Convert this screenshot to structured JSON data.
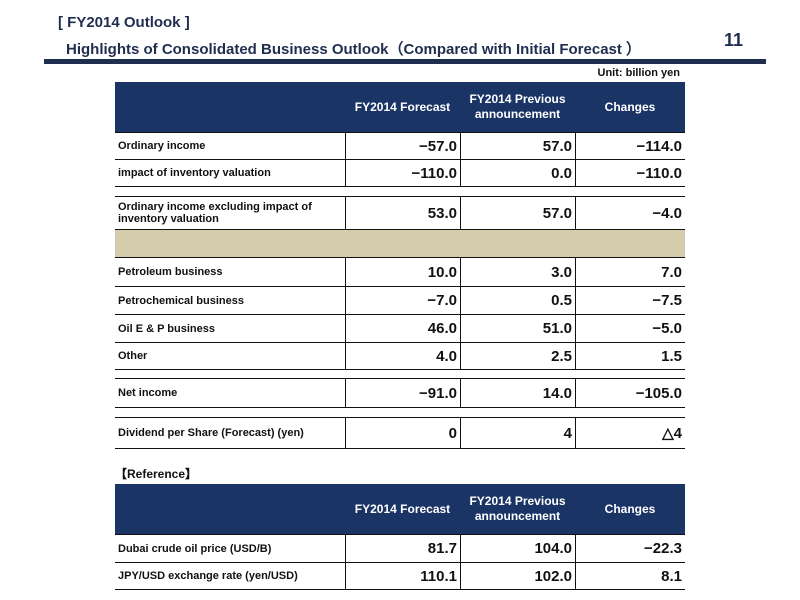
{
  "header": {
    "title": "[ FY2014 Outlook ]",
    "subtitle": "Highlights of Consolidated Business Outlook（Compared with Initial Forecast ）",
    "page_number": "11",
    "unit": "Unit: billion yen"
  },
  "columns": {
    "col1": "FY2014 Forecast",
    "col2": "FY2014 Previous announcement",
    "col3": "Changes"
  },
  "main_rows": [
    {
      "label": "Ordinary income",
      "forecast": "−57.0",
      "previous": "57.0",
      "change": "−114.0"
    },
    {
      "label": "impact of inventory valuation",
      "forecast": "−110.0",
      "previous": "0.0",
      "change": "−110.0"
    },
    {
      "label": "Ordinary income excluding impact of inventory valuation",
      "forecast": "53.0",
      "previous": "57.0",
      "change": "−4.0"
    },
    {
      "label": "Petroleum business",
      "forecast": "10.0",
      "previous": "3.0",
      "change": "7.0"
    },
    {
      "label": "Petrochemical business",
      "forecast": "−7.0",
      "previous": "0.5",
      "change": "−7.5"
    },
    {
      "label": "Oil E & P business",
      "forecast": "46.0",
      "previous": "51.0",
      "change": "−5.0"
    },
    {
      "label": "Other",
      "forecast": "4.0",
      "previous": "2.5",
      "change": "1.5"
    },
    {
      "label": "Net income",
      "forecast": "−91.0",
      "previous": "14.0",
      "change": "−105.0"
    },
    {
      "label": "Dividend per Share (Forecast) (yen)",
      "forecast": "0",
      "previous": "4",
      "change": "△4"
    }
  ],
  "reference": {
    "label": "【Reference】",
    "rows": [
      {
        "label": "Dubai crude oil price (USD/B)",
        "forecast": "81.7",
        "previous": "104.0",
        "change": "−22.3"
      },
      {
        "label": "JPY/USD exchange rate (yen/USD)",
        "forecast": "110.1",
        "previous": "102.0",
        "change": "8.1"
      }
    ]
  }
}
